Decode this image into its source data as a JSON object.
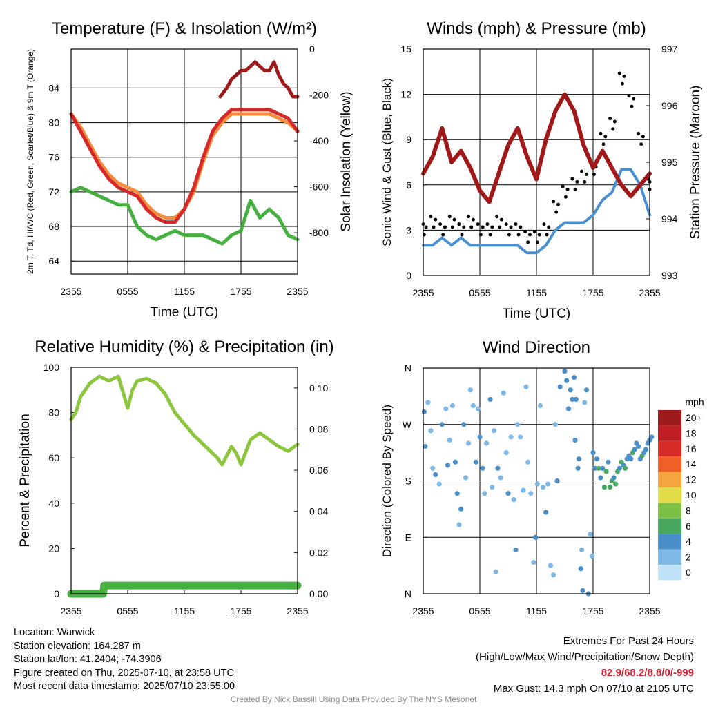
{
  "chart_data": [
    {
      "type": "line",
      "title": "Temperature (F) & Insolation (W/m²)",
      "xlabel": "Time (UTC)",
      "ylabel": "2m T, Td, HI/WC (Red, Green, Scarlet/Blue) & 9m T (Orange)",
      "y2label": "Solar Insolation (Yellow)",
      "ylim": [
        62.5,
        88.5
      ],
      "y2lim": [
        -980,
        0
      ],
      "x_ticks": [
        "2355",
        "0555",
        "1155",
        "1755",
        "2355"
      ],
      "y_ticks": [
        64,
        68,
        72,
        76,
        80,
        84
      ],
      "y2_ticks": [
        0,
        -200,
        -400,
        -600,
        -800
      ],
      "grid": true,
      "series": [
        {
          "name": "2m T",
          "color": "#d42a2a",
          "x": [
            0,
            1,
            2,
            3,
            4,
            5,
            6,
            7,
            8,
            9,
            10,
            11,
            12,
            13,
            14,
            15,
            16,
            17,
            18,
            19,
            20,
            21,
            22,
            23,
            24
          ],
          "values": [
            81,
            79,
            77,
            75,
            73.5,
            72.5,
            72,
            71.5,
            70,
            69,
            68.5,
            68.5,
            70,
            72.5,
            76,
            79,
            80.5,
            81.5,
            81.5,
            81.5,
            81.5,
            81.5,
            81,
            80.5,
            79
          ]
        },
        {
          "name": "9m T",
          "color": "#f58b3c",
          "x": [
            0,
            1,
            2,
            3,
            4,
            5,
            6,
            7,
            8,
            9,
            10,
            11,
            12,
            13,
            14,
            15,
            16,
            17,
            18,
            19,
            20,
            21,
            22,
            23,
            24
          ],
          "values": [
            81,
            79.5,
            77.5,
            75.5,
            74,
            73,
            72.5,
            72,
            70.5,
            69.5,
            69,
            69,
            70,
            72,
            75.5,
            78.5,
            80,
            81,
            81,
            81,
            81,
            81,
            80.5,
            80,
            79
          ]
        },
        {
          "name": "Td",
          "color": "#45b040",
          "x": [
            0,
            1,
            2,
            3,
            4,
            5,
            6,
            7,
            8,
            9,
            10,
            11,
            12,
            13,
            14,
            15,
            16,
            17,
            18,
            19,
            20,
            21,
            22,
            23,
            24
          ],
          "values": [
            72,
            72.5,
            72,
            71.5,
            71,
            70.5,
            70.5,
            68,
            67,
            66.5,
            67,
            67.5,
            67,
            67,
            67,
            66.5,
            66,
            67,
            67.5,
            71,
            69,
            70,
            69,
            67,
            66.5
          ]
        },
        {
          "name": "HI",
          "color": "#9c1a1a",
          "x": [
            15.8,
            16.5,
            17,
            17.5,
            18,
            18.5,
            19,
            19.5,
            20,
            20.5,
            21,
            21.5,
            22,
            22.5,
            23,
            23.5,
            24
          ],
          "values": [
            83,
            84,
            85,
            85.5,
            86,
            86,
            86.5,
            87,
            86.5,
            86,
            86,
            87,
            85.5,
            84.5,
            84,
            83,
            83
          ]
        }
      ]
    },
    {
      "type": "line",
      "title": "Winds (mph) & Pressure (mb)",
      "xlabel": "Time (UTC)",
      "ylabel": "Sonic Wind & Gust (Blue, Black)",
      "y2label": "Station Pressure (Maroon)",
      "ylim": [
        0,
        15
      ],
      "y2lim": [
        993,
        997
      ],
      "x_ticks": [
        "2355",
        "0555",
        "1155",
        "1755",
        "2355"
      ],
      "y_ticks": [
        0,
        3,
        6,
        9,
        12,
        15
      ],
      "y2_ticks": [
        993,
        994,
        995,
        996,
        997
      ],
      "grid": true,
      "series": [
        {
          "name": "Sonic Wind",
          "color": "#4a90d0",
          "x": [
            0,
            1,
            2,
            3,
            4,
            5,
            6,
            7,
            8,
            9,
            10,
            11,
            12,
            13,
            14,
            15,
            16,
            17,
            18,
            19,
            20,
            21,
            22,
            23,
            24
          ],
          "values": [
            2,
            2,
            2.5,
            2,
            2.5,
            2,
            2,
            2,
            2,
            2,
            2,
            1.5,
            1.5,
            2,
            3,
            3.5,
            3.5,
            3.5,
            4,
            5,
            5.5,
            7,
            7,
            6,
            4
          ]
        },
        {
          "name": "Gust",
          "color": "#000000",
          "x": [
            0,
            1,
            2,
            3,
            4,
            5,
            6,
            7,
            8,
            9,
            10,
            11,
            12,
            13,
            14,
            15,
            16,
            17,
            18,
            19,
            20,
            21,
            22,
            23,
            24
          ],
          "values": [
            3,
            3.5,
            3,
            3.5,
            3,
            3.5,
            3,
            3,
            3.5,
            3,
            3,
            2.5,
            2.5,
            3,
            4.5,
            5.5,
            6,
            6.5,
            7,
            9,
            10,
            13,
            11.5,
            9,
            6
          ]
        },
        {
          "name": "Station Pressure",
          "color": "#a01818",
          "x": [
            0,
            1,
            2,
            3,
            4,
            5,
            6,
            7,
            8,
            9,
            10,
            11,
            12,
            13,
            14,
            15,
            16,
            17,
            18,
            19,
            20,
            21,
            22,
            23,
            24
          ],
          "values": [
            994.8,
            995.1,
            995.6,
            995.0,
            995.2,
            994.9,
            994.5,
            994.3,
            994.8,
            995.3,
            995.6,
            995.1,
            994.7,
            995.4,
            995.9,
            996.2,
            995.9,
            995.3,
            994.9,
            995.2,
            994.9,
            994.6,
            994.4,
            994.6,
            994.8
          ]
        }
      ]
    },
    {
      "type": "line",
      "title": "Relative Humidity (%) & Precipitation (in)",
      "xlabel": "",
      "ylabel": "Percent & Precipitation",
      "ylim": [
        0,
        100
      ],
      "y2lim": [
        0,
        0.11
      ],
      "x_ticks": [
        "2355",
        "0555",
        "1155",
        "1755",
        "2355"
      ],
      "y_ticks": [
        0,
        20,
        40,
        60,
        80,
        100
      ],
      "y2_ticks": [
        "0.00",
        "0.02",
        "0.04",
        "0.06",
        "0.08",
        "0.10"
      ],
      "grid": false,
      "series": [
        {
          "name": "Relative Humidity",
          "color": "#8cc63f",
          "x": [
            0,
            0.5,
            1,
            1.5,
            2,
            3,
            4,
            4.5,
            5,
            6,
            6.5,
            7,
            8,
            9,
            10,
            11,
            12,
            13,
            14,
            15,
            15.5,
            16,
            17,
            17.5,
            18,
            19,
            20,
            21,
            22,
            23,
            24
          ],
          "values": [
            77,
            80,
            87,
            90,
            93,
            96,
            94,
            95,
            96,
            82,
            90,
            94,
            95,
            93,
            88,
            80,
            75,
            70,
            66,
            62,
            60,
            57,
            65,
            62,
            57,
            68,
            71,
            68,
            65,
            63,
            66
          ]
        },
        {
          "name": "Precipitation",
          "color": "#45b040",
          "x": [
            0,
            3.4,
            3.5,
            24
          ],
          "values": [
            0,
            0,
            0.004,
            0.004
          ]
        }
      ]
    },
    {
      "type": "scatter",
      "title": "Wind Direction",
      "xlabel": "",
      "ylabel": "Direction (Colored By Speed)",
      "x_ticks": [
        "2355",
        "0555",
        "1155",
        "1755",
        "2355"
      ],
      "y_ticks": [
        "N",
        "E",
        "S",
        "W",
        "N"
      ],
      "ylim": [
        0,
        360
      ],
      "grid": true,
      "legend": {
        "title": "mph",
        "labels": [
          "0",
          "2",
          "4",
          "6",
          "8",
          "10",
          "12",
          "14",
          "16",
          "18",
          "20+"
        ],
        "colors": [
          "#c0e2f7",
          "#7db8e6",
          "#4a8fc8",
          "#48a860",
          "#7cc046",
          "#e2dc4a",
          "#f5a540",
          "#ef6028",
          "#d72c28",
          "#be1e24",
          "#9c1a1a"
        ],
        "position": "right"
      },
      "points": [
        [
          0.1,
          290,
          3
        ],
        [
          0.2,
          235,
          3
        ],
        [
          0.5,
          305,
          2
        ],
        [
          0.8,
          260,
          2
        ],
        [
          1.0,
          200,
          2
        ],
        [
          1.3,
          190,
          3
        ],
        [
          1.7,
          175,
          2
        ],
        [
          2.0,
          270,
          3
        ],
        [
          2.4,
          295,
          2
        ],
        [
          2.6,
          205,
          3
        ],
        [
          2.8,
          245,
          2
        ],
        [
          3.1,
          300,
          2
        ],
        [
          3.4,
          210,
          3
        ],
        [
          3.6,
          160,
          3
        ],
        [
          3.8,
          110,
          2
        ],
        [
          4.0,
          135,
          3
        ],
        [
          4.3,
          270,
          3
        ],
        [
          4.5,
          185,
          2
        ],
        [
          4.8,
          240,
          2
        ],
        [
          5.0,
          325,
          2
        ],
        [
          5.3,
          300,
          2
        ],
        [
          5.6,
          210,
          3
        ],
        [
          5.8,
          295,
          2
        ],
        [
          6.0,
          250,
          3
        ],
        [
          6.3,
          200,
          3
        ],
        [
          6.5,
          160,
          2
        ],
        [
          6.7,
          240,
          2
        ],
        [
          7.1,
          310,
          3
        ],
        [
          7.3,
          170,
          2
        ],
        [
          7.5,
          260,
          2
        ],
        [
          7.7,
          35,
          2
        ],
        [
          7.9,
          200,
          3
        ],
        [
          8.2,
          185,
          2
        ],
        [
          8.5,
          320,
          1
        ],
        [
          8.8,
          225,
          2
        ],
        [
          9.0,
          160,
          3
        ],
        [
          9.3,
          250,
          2
        ],
        [
          9.6,
          150,
          2
        ],
        [
          9.8,
          70,
          3
        ],
        [
          10.0,
          270,
          2
        ],
        [
          10.3,
          250,
          2
        ],
        [
          10.6,
          165,
          2
        ],
        [
          10.9,
          330,
          1
        ],
        [
          11.1,
          210,
          2
        ],
        [
          11.4,
          160,
          2
        ],
        [
          11.7,
          50,
          2
        ],
        [
          11.9,
          90,
          3
        ],
        [
          12.1,
          175,
          2
        ],
        [
          12.4,
          300,
          2
        ],
        [
          12.7,
          170,
          2
        ],
        [
          13.0,
          130,
          3
        ],
        [
          13.2,
          175,
          2
        ],
        [
          13.5,
          45,
          2
        ],
        [
          13.8,
          30,
          2
        ],
        [
          14.0,
          270,
          2
        ],
        [
          14.2,
          180,
          3
        ],
        [
          14.5,
          330,
          3
        ],
        [
          15.0,
          355,
          3
        ],
        [
          15.2,
          340,
          3
        ],
        [
          15.4,
          295,
          3
        ],
        [
          15.6,
          325,
          3
        ],
        [
          15.8,
          310,
          3
        ],
        [
          16.0,
          345,
          3
        ],
        [
          16.1,
          245,
          3
        ],
        [
          16.2,
          310,
          3
        ],
        [
          16.4,
          200,
          3
        ],
        [
          16.5,
          215,
          3
        ],
        [
          16.7,
          40,
          3
        ],
        [
          16.8,
          70,
          2
        ],
        [
          16.9,
          5,
          3
        ],
        [
          17.1,
          305,
          2
        ],
        [
          17.3,
          325,
          3
        ],
        [
          17.5,
          0,
          3
        ],
        [
          17.7,
          95,
          2
        ],
        [
          17.9,
          60,
          2
        ],
        [
          18.0,
          225,
          3
        ],
        [
          18.2,
          200,
          3
        ],
        [
          18.4,
          215,
          4
        ],
        [
          18.6,
          200,
          5
        ],
        [
          18.8,
          185,
          4
        ],
        [
          19.0,
          200,
          4
        ],
        [
          19.2,
          170,
          5
        ],
        [
          19.4,
          195,
          5
        ],
        [
          19.6,
          210,
          4
        ],
        [
          19.8,
          170,
          5
        ],
        [
          20.0,
          180,
          5
        ],
        [
          20.2,
          185,
          4
        ],
        [
          20.4,
          175,
          5
        ],
        [
          20.6,
          195,
          5
        ],
        [
          20.8,
          200,
          4
        ],
        [
          21.0,
          210,
          5
        ],
        [
          21.2,
          205,
          4
        ],
        [
          21.4,
          200,
          5
        ],
        [
          21.6,
          215,
          4
        ],
        [
          21.8,
          220,
          4
        ],
        [
          22.0,
          215,
          3
        ],
        [
          22.2,
          225,
          5
        ],
        [
          22.4,
          230,
          4
        ],
        [
          22.6,
          240,
          3
        ],
        [
          22.8,
          235,
          4
        ],
        [
          23.0,
          215,
          4
        ],
        [
          23.2,
          220,
          5
        ],
        [
          23.4,
          225,
          3
        ],
        [
          23.6,
          230,
          4
        ],
        [
          23.8,
          240,
          4
        ],
        [
          24.0,
          245,
          3
        ],
        [
          24.2,
          250,
          3
        ]
      ]
    }
  ],
  "info": {
    "location": "Location: Warwick",
    "elevation": "Station elevation: 164.287 m",
    "latlon": "Station lat/lon: 41.2404; -74.3906",
    "created": "Figure created on Thu, 2025-07-10, at 23:58 UTC",
    "recent": "Most recent data timestamp: 2025/07/10 23:55:00"
  },
  "extremes": {
    "title": "Extremes For Past 24 Hours",
    "subtitle": "(High/Low/Max Wind/Precipitation/Snow Depth)",
    "values": "82.9/68.2/8.8/0/-999",
    "gust": "Max Gust: 14.3 mph On 07/10 at 2105 UTC"
  },
  "credit": "Created By Nick Bassill Using Data Provided By The NYS Mesonet"
}
